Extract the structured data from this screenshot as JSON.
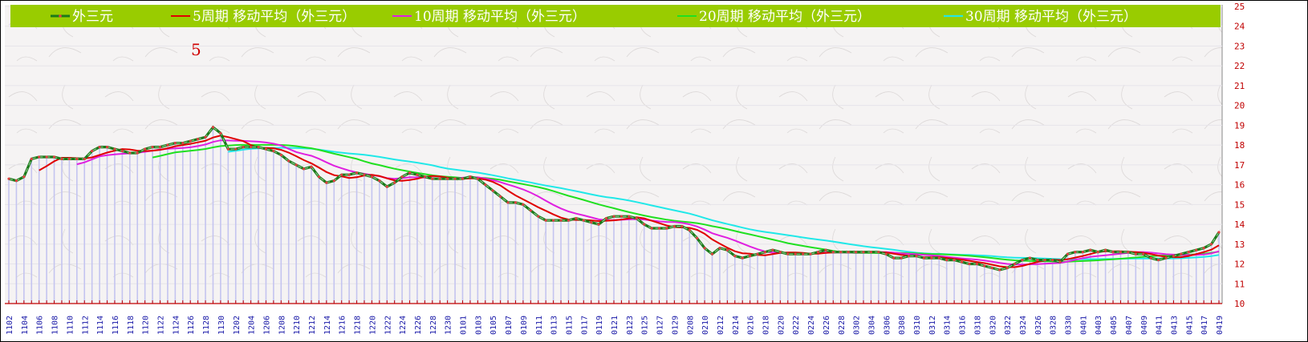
{
  "chart_data": {
    "type": "line",
    "annotation": "5",
    "legend_placement": "top",
    "y_axis": {
      "side": "right",
      "ylim": [
        10,
        25
      ],
      "ticks": [
        10,
        11,
        12,
        13,
        14,
        15,
        16,
        17,
        18,
        19,
        20,
        21,
        22,
        23,
        24,
        25
      ]
    },
    "x_tick_labels": [
      "1102",
      "1104",
      "1106",
      "1108",
      "1110",
      "1112",
      "1114",
      "1116",
      "1118",
      "1120",
      "1122",
      "1124",
      "1126",
      "1128",
      "1130",
      "1202",
      "1204",
      "1206",
      "1208",
      "1210",
      "1212",
      "1214",
      "1216",
      "1218",
      "1220",
      "1222",
      "1224",
      "1226",
      "1228",
      "1230",
      "0101",
      "0103",
      "0105",
      "0107",
      "0109",
      "0111",
      "0113",
      "0115",
      "0117",
      "0119",
      "0121",
      "0123",
      "0125",
      "0127",
      "0129",
      "0208",
      "0210",
      "0212",
      "0214",
      "0216",
      "0218",
      "0220",
      "0222",
      "0224",
      "0226",
      "0228",
      "0302",
      "0304",
      "0306",
      "0308",
      "0310",
      "0312",
      "0314",
      "0316",
      "0318",
      "0320",
      "0322",
      "0324",
      "0326",
      "0328",
      "0330",
      "0401",
      "0403",
      "0405",
      "0407",
      "0409",
      "0411",
      "0413",
      "0415",
      "0417",
      "0419"
    ],
    "points_per_tick": 2,
    "series": [
      {
        "name": "外三元",
        "type": "price",
        "color": "#1a7a1a",
        "marker_color": "#e04040",
        "values": [
          16.3,
          16.2,
          16.4,
          17.3,
          17.4,
          17.4,
          17.4,
          17.3,
          17.3,
          17.3,
          17.3,
          17.7,
          17.9,
          17.9,
          17.8,
          17.7,
          17.6,
          17.6,
          17.8,
          17.9,
          17.9,
          18.0,
          18.1,
          18.1,
          18.2,
          18.3,
          18.4,
          18.9,
          18.6,
          17.8,
          17.8,
          17.9,
          17.9,
          17.9,
          17.8,
          17.7,
          17.5,
          17.2,
          17.0,
          16.8,
          16.9,
          16.4,
          16.1,
          16.2,
          16.5,
          16.5,
          16.6,
          16.5,
          16.4,
          16.2,
          15.9,
          16.1,
          16.4,
          16.6,
          16.5,
          16.4,
          16.3,
          16.3,
          16.3,
          16.3,
          16.3,
          16.4,
          16.3,
          16.0,
          15.7,
          15.4,
          15.1,
          15.1,
          15.0,
          14.7,
          14.4,
          14.2,
          14.2,
          14.2,
          14.2,
          14.3,
          14.2,
          14.1,
          14.0,
          14.3,
          14.4,
          14.4,
          14.4,
          14.3,
          14.0,
          13.8,
          13.8,
          13.8,
          13.9,
          13.9,
          13.7,
          13.3,
          12.8,
          12.5,
          12.8,
          12.7,
          12.4,
          12.3,
          12.4,
          12.5,
          12.6,
          12.7,
          12.6,
          12.5,
          12.5,
          12.5,
          12.5,
          12.6,
          12.7,
          12.6,
          12.6,
          12.6,
          12.6,
          12.6,
          12.6,
          12.6,
          12.5,
          12.3,
          12.3,
          12.4,
          12.4,
          12.3,
          12.3,
          12.3,
          12.2,
          12.2,
          12.1,
          12.0,
          12.0,
          11.9,
          11.8,
          11.7,
          11.8,
          12.0,
          12.2,
          12.3,
          12.2,
          12.2,
          12.2,
          12.1,
          12.5,
          12.6,
          12.6,
          12.7,
          12.6,
          12.7,
          12.6,
          12.6,
          12.6,
          12.5,
          12.5,
          12.3,
          12.2,
          12.3,
          12.4,
          12.5,
          12.6,
          12.7,
          12.8,
          13.0,
          13.6
        ]
      },
      {
        "name": "5周期 移动平均（外三元）",
        "type": "ma",
        "period": 5,
        "color": "#e00000"
      },
      {
        "name": "10周期 移动平均（外三元）",
        "type": "ma",
        "period": 10,
        "color": "#e020e0"
      },
      {
        "name": "20周期 移动平均（外三元）",
        "type": "ma",
        "period": 20,
        "color": "#20e020"
      },
      {
        "name": "30周期 移动平均（外三元）",
        "type": "ma",
        "period": 30,
        "color": "#20e8e8"
      }
    ],
    "colors": {
      "legend_bg": "#99cc00",
      "drop_lines": "#c4c4f0",
      "axis": "#c00000",
      "x_labels": "#1a1aa8"
    }
  }
}
